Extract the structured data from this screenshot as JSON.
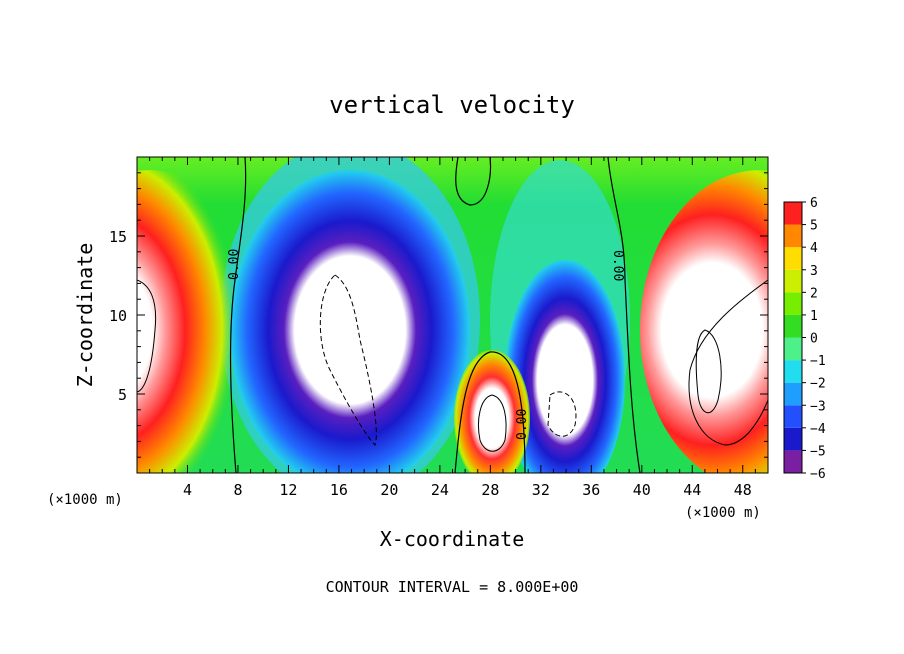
{
  "chart_data": {
    "type": "heatmap",
    "title": "vertical velocity",
    "xlabel": "X-coordinate",
    "ylabel": "Z-coordinate",
    "x_unit_left": "(×1000 m)",
    "x_unit_right": "(×1000 m)",
    "footer": "CONTOUR INTERVAL = 8.000E+00",
    "xlim": [
      0,
      50
    ],
    "ylim": [
      0,
      20
    ],
    "x_ticks": [
      4,
      8,
      12,
      16,
      20,
      24,
      28,
      32,
      36,
      40,
      44,
      48
    ],
    "y_ticks": [
      5,
      10,
      15
    ],
    "colorbar": {
      "ticks": [
        6,
        5,
        4,
        3,
        2,
        1,
        0,
        -1,
        -2,
        -3,
        -4,
        -5,
        -6
      ],
      "labels": [
        "6",
        "5",
        "4",
        "3",
        "2",
        "1",
        "0",
        "−1",
        "−2",
        "−3",
        "−4",
        "−5",
        "−6"
      ],
      "range": [
        -6,
        6
      ],
      "colors": [
        "#7a1fa2",
        "#1a1acc",
        "#2250ff",
        "#1e9fff",
        "#22ddee",
        "#4ef08a",
        "#33dd22",
        "#77ee00",
        "#ccee00",
        "#ffdd00",
        "#ff8800",
        "#ff2020",
        "#ff9a9a"
      ]
    },
    "contour_labels": [
      "0.00",
      "0.00",
      "0.00"
    ],
    "contour_interval": 8.0
  }
}
